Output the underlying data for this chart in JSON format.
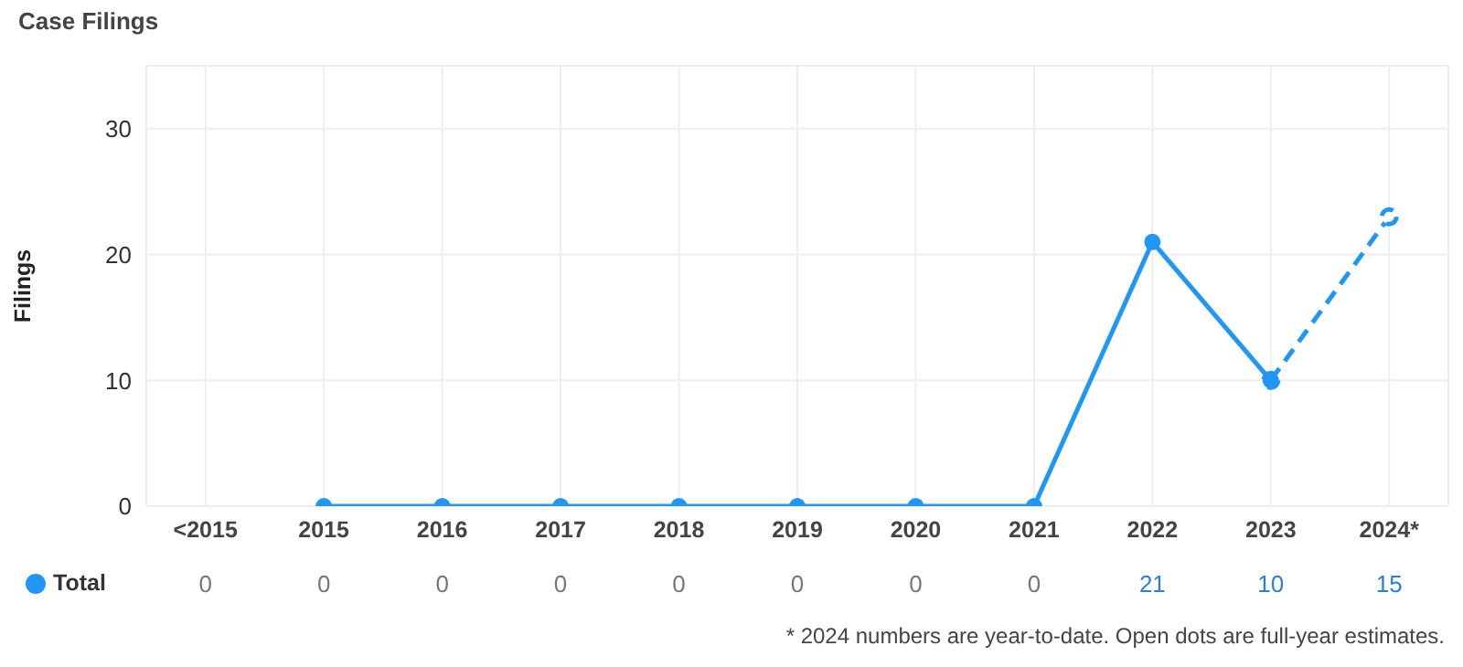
{
  "chart_data": {
    "type": "line",
    "title": "Case Filings",
    "ylabel": "Filings",
    "categories": [
      "<2015",
      "2015",
      "2016",
      "2017",
      "2018",
      "2019",
      "2020",
      "2021",
      "2022",
      "2023",
      "2024*"
    ],
    "series": [
      {
        "line_style": "dashed",
        "color": "#2196f3",
        "values": [
          null,
          null,
          null,
          null,
          null,
          null,
          null,
          null,
          null,
          10,
          23
        ]
      },
      {
        "name": "Total",
        "line_style": "solid",
        "color": "#2196f3",
        "values": [
          null,
          0,
          0,
          0,
          0,
          0,
          0,
          0,
          21,
          10,
          null
        ],
        "value_labels": [
          "0",
          "0",
          "0",
          "0",
          "0",
          "0",
          "0",
          "0",
          "21",
          "10",
          "15"
        ]
      }
    ],
    "ylim": [
      0,
      35
    ],
    "yticks": [
      0,
      10,
      20,
      30
    ],
    "grid": true,
    "legend": "bottom left",
    "marker": "circle",
    "annotations": [
      "* 2024 numbers are year-to-date. Open dots are full-year estimates."
    ]
  }
}
